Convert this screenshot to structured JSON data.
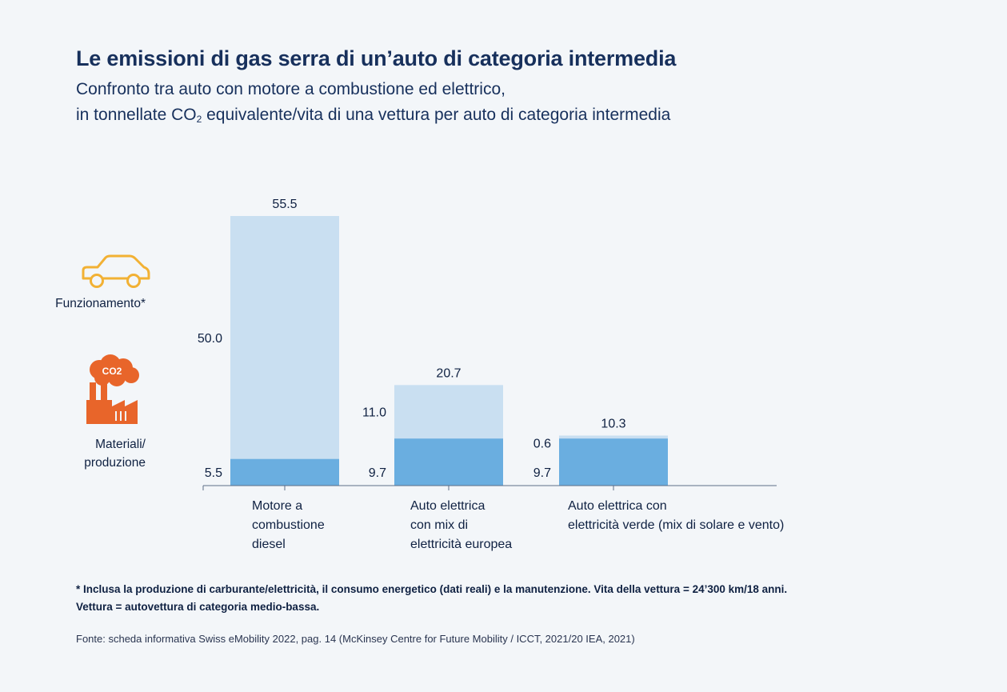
{
  "title": "Le emissioni di gas serra di un’auto di categoria intermedia",
  "subtitle": {
    "line1": "Confronto tra auto con motore a combustione ed elettrico,",
    "line2_a": "in tonnellate CO",
    "line2_sub": "2",
    "line2_b": " equivalente/vita di una vettura per auto di categoria intermedia"
  },
  "legend": {
    "operation": {
      "label": "Funzionamento*",
      "icon": "car-icon",
      "color": "#f2b134"
    },
    "production": {
      "label_line1": "Materiali/",
      "label_line2": "produzione",
      "icon": "factory-co2-icon",
      "color": "#e8652a",
      "icon_text": "CO2"
    }
  },
  "footnote": {
    "line1": "* Inclusa la produzione di carburante/elettricità, il consumo energetico (dati reali) e la manutenzione. Vita della vettura = 24’300 km/18 anni.",
    "line2": "Vettura = autovettura di categoria medio-bassa."
  },
  "source": "Fonte: scheda informativa Swiss eMobility 2022, pag. 14 (McKinsey Centre for Future Mobility / ICCT, 2021/20 IEA, 2021)",
  "chart_data": {
    "type": "bar",
    "stacked": true,
    "categories": [
      [
        "Motore a",
        "combustione",
        "diesel"
      ],
      [
        "Auto elettrica",
        "con mix di",
        "elettricità europea"
      ],
      [
        "Auto elettrica con",
        "elettricità verde (mix di solare e vento)"
      ]
    ],
    "series": [
      {
        "name": "Materiali/produzione",
        "values": [
          5.5,
          9.7,
          9.7
        ],
        "labels": [
          "5.5",
          "9.7",
          "9.7"
        ],
        "color": "#6aaee0"
      },
      {
        "name": "Funzionamento*",
        "values": [
          50.0,
          11.0,
          0.6
        ],
        "labels": [
          "50.0",
          "11.0",
          "0.6"
        ],
        "color": "#c9dff1"
      }
    ],
    "totals": [
      55.5,
      20.7,
      10.3
    ],
    "total_labels": [
      "55.5",
      "20.7",
      "10.3"
    ],
    "ylim": [
      0,
      55.5
    ],
    "grid": false,
    "axis_color": "#5d6d86"
  }
}
